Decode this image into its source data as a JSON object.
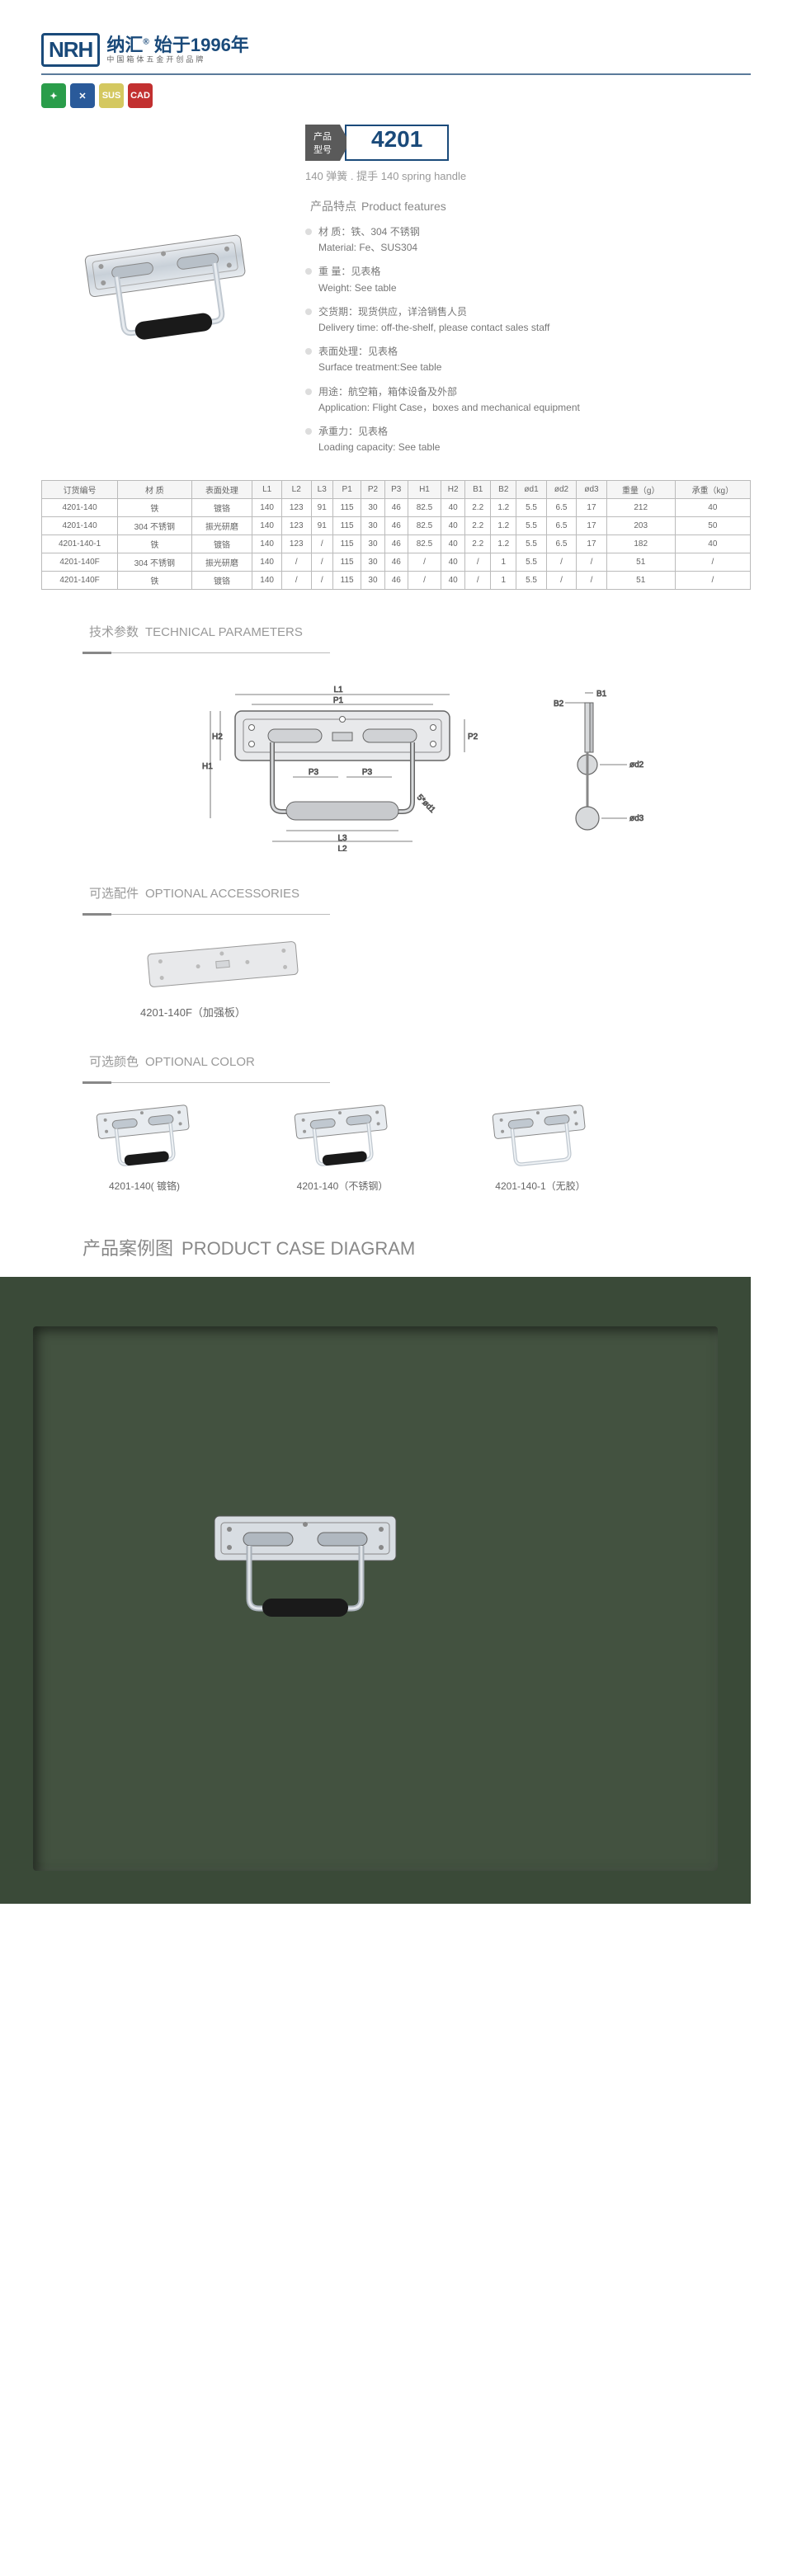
{
  "brand": {
    "logo": "NRH",
    "name": "纳汇",
    "tagline": "始于1996年",
    "sub": "中国箱体五金开创品牌"
  },
  "icons": [
    {
      "bg": "#2a9d4a",
      "txt": "✦"
    },
    {
      "bg": "#2a5a9a",
      "txt": "✕"
    },
    {
      "bg": "#d4c860",
      "txt": "SUS"
    },
    {
      "bg": "#c23030",
      "txt": "CAD"
    }
  ],
  "model": {
    "label_a": "产品",
    "label_b": "型号",
    "number": "4201",
    "subtitle": "140 弹簧 . 提手  140 spring handle"
  },
  "features": {
    "title_cn": "产品特点",
    "title_en": "Product features",
    "items": [
      {
        "cn": "材 质：铁、304 不锈钢",
        "en": "Material: Fe、SUS304"
      },
      {
        "cn": "重 量：见表格",
        "en": "Weight: See table"
      },
      {
        "cn": "交货期：现货供应，详洽销售人员",
        "en": "Delivery time: off-the-shelf, please contact sales staff"
      },
      {
        "cn": "表面处理：见表格",
        "en": "Surface treatment:See table"
      },
      {
        "cn": "用途：航空箱，箱体设备及外部",
        "en": "Application: Flight Case，boxes and mechanical equipment"
      },
      {
        "cn": "承重力：见表格",
        "en": "Loading capacity: See table"
      }
    ]
  },
  "table": {
    "headers": [
      "订货编号",
      "材   质",
      "表面处理",
      "L1",
      "L2",
      "L3",
      "P1",
      "P2",
      "P3",
      "H1",
      "H2",
      "B1",
      "B2",
      "ød1",
      "ød2",
      "ød3",
      "重量（g）",
      "承重（kg）"
    ],
    "rows": [
      [
        "4201-140",
        "铁",
        "镀铬",
        "140",
        "123",
        "91",
        "115",
        "30",
        "46",
        "82.5",
        "40",
        "2.2",
        "1.2",
        "5.5",
        "6.5",
        "17",
        "212",
        "40"
      ],
      [
        "4201-140",
        "304 不锈钢",
        "振光研磨",
        "140",
        "123",
        "91",
        "115",
        "30",
        "46",
        "82.5",
        "40",
        "2.2",
        "1.2",
        "5.5",
        "6.5",
        "17",
        "203",
        "50"
      ],
      [
        "4201-140-1",
        "铁",
        "镀铬",
        "140",
        "123",
        "/",
        "115",
        "30",
        "46",
        "82.5",
        "40",
        "2.2",
        "1.2",
        "5.5",
        "6.5",
        "17",
        "182",
        "40"
      ],
      [
        "4201-140F",
        "304 不锈钢",
        "振光研磨",
        "140",
        "/",
        "/",
        "115",
        "30",
        "46",
        "/",
        "40",
        "/",
        "1",
        "5.5",
        "/",
        "/",
        "51",
        "/"
      ],
      [
        "4201-140F",
        "铁",
        "镀铬",
        "140",
        "/",
        "/",
        "115",
        "30",
        "46",
        "/",
        "40",
        "/",
        "1",
        "5.5",
        "/",
        "/",
        "51",
        "/"
      ]
    ]
  },
  "tech": {
    "title_cn": "技术参数",
    "title_en": "TECHNICAL PARAMETERS",
    "dims": [
      "L1",
      "L2",
      "L3",
      "P1",
      "P2",
      "P3",
      "H1",
      "H2",
      "B1",
      "B2",
      "5*ød1",
      "ød2",
      "ød3"
    ]
  },
  "accessory": {
    "title_cn": "可选配件",
    "title_en": "OPTIONAL ACCESSORIES",
    "label": "4201-140F（加强板）"
  },
  "colors": {
    "title_cn": "可选颜色",
    "title_en": "OPTIONAL COLOR",
    "items": [
      {
        "label": "4201-140( 镀铬)",
        "grip": true
      },
      {
        "label": "4201-140（不锈钢）",
        "grip": true
      },
      {
        "label": "4201-140-1（无胶）",
        "grip": false
      }
    ]
  },
  "case": {
    "title_cn": "产品案例图",
    "title_en": "PRODUCT CASE DIAGRAM"
  },
  "style": {
    "primary": "#1a4a7a",
    "divider": "#5a7a9a",
    "chrome": "#d8dde2",
    "chrome_dark": "#9aa5b0",
    "black_grip": "#1a1a1a"
  }
}
